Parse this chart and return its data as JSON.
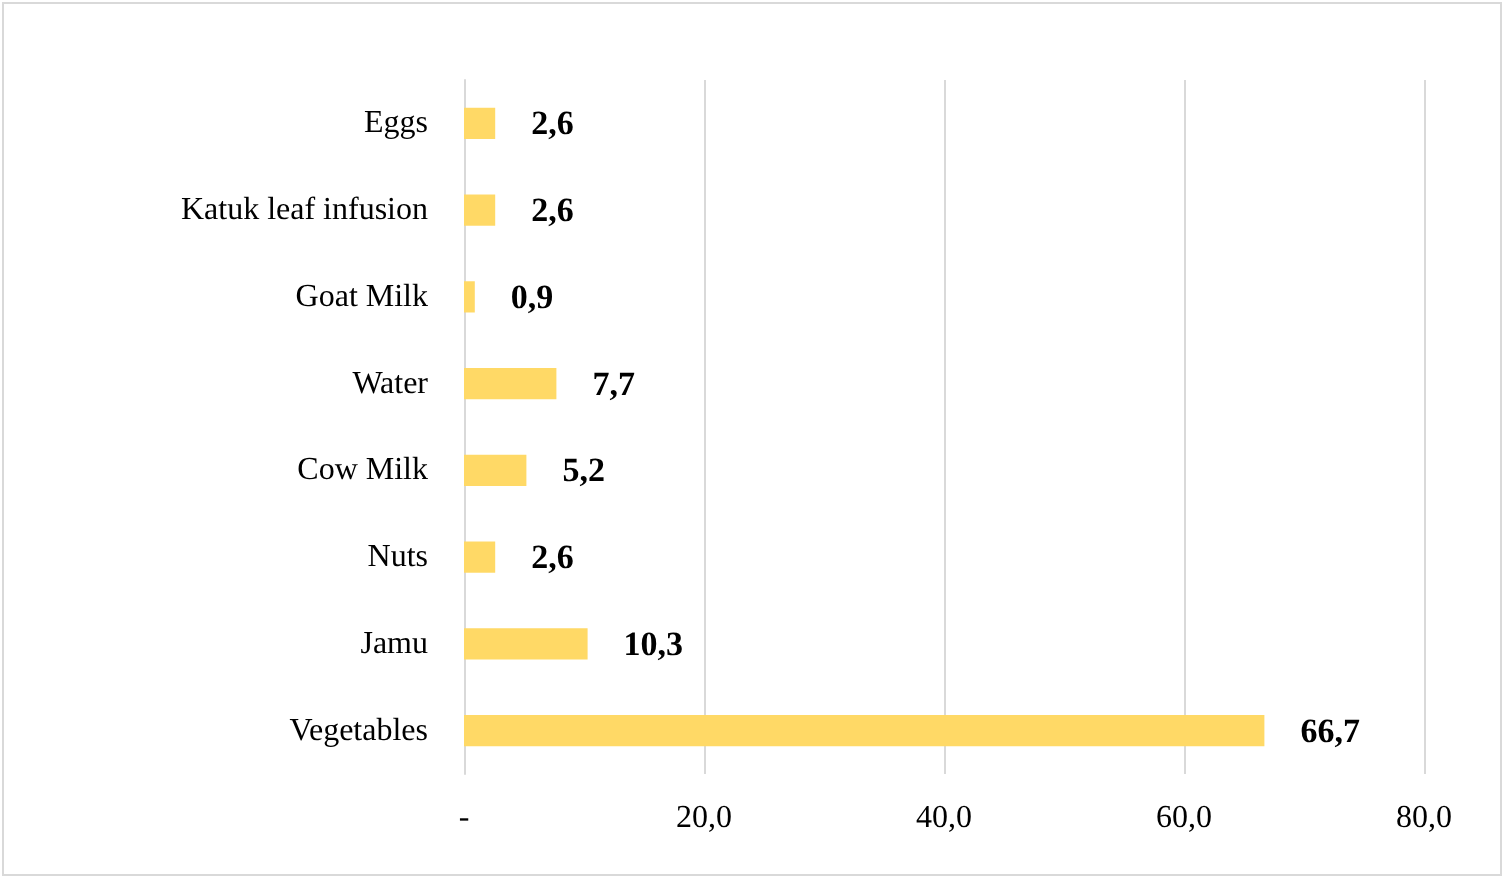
{
  "chart_data": {
    "type": "bar",
    "orientation": "horizontal",
    "categories": [
      "Eggs",
      "Katuk leaf infusion",
      "Goat Milk",
      "Water",
      "Cow Milk",
      "Nuts",
      "Jamu",
      "Vegetables"
    ],
    "values": [
      2.6,
      2.6,
      0.9,
      7.7,
      5.2,
      2.6,
      10.3,
      66.7
    ],
    "value_labels": [
      "2,6",
      "2,6",
      "0,9",
      "7,7",
      "5,2",
      "2,6",
      "10,3",
      "66,7"
    ],
    "color": "#ffd966",
    "xlim": [
      0,
      80
    ],
    "xticks": [
      {
        "value": 0,
        "label": "-"
      },
      {
        "value": 20,
        "label": "20,0"
      },
      {
        "value": 40,
        "label": "40,0"
      },
      {
        "value": 60,
        "label": "60,0"
      },
      {
        "value": 80,
        "label": "80,0"
      }
    ],
    "grid": "x"
  }
}
